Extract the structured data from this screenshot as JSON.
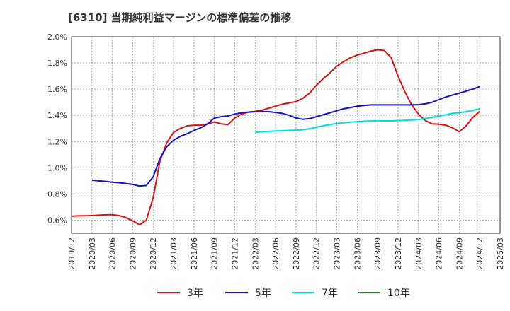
{
  "chart_data": {
    "type": "line",
    "title": "[6310]  当期純利益マージンの標準偏差の推移",
    "xlabel": "",
    "ylabel": "",
    "ylim": [
      0.5,
      2.0
    ],
    "yticks": [
      0.6,
      0.8,
      1.0,
      1.2,
      1.4,
      1.6,
      1.8,
      2.0
    ],
    "ytick_labels": [
      "0.6%",
      "0.8%",
      "1.0%",
      "1.2%",
      "1.4%",
      "1.6%",
      "1.8%",
      "2.0%"
    ],
    "xticks": [
      "2019/12",
      "2020/03",
      "2020/06",
      "2020/09",
      "2020/12",
      "2021/03",
      "2021/06",
      "2021/09",
      "2021/12",
      "2022/03",
      "2022/06",
      "2022/09",
      "2022/12",
      "2023/03",
      "2023/06",
      "2023/09",
      "2023/12",
      "2024/03",
      "2024/06",
      "2024/09",
      "2024/12",
      "2025/03"
    ],
    "grid": true,
    "legend_position": "bottom",
    "series": [
      {
        "name": "3年",
        "color": "#dd1111",
        "x": [
          "2019/12",
          "2020/01",
          "2020/02",
          "2020/03",
          "2020/04",
          "2020/05",
          "2020/06",
          "2020/07",
          "2020/08",
          "2020/09",
          "2020/10",
          "2020/11",
          "2020/12",
          "2021/01",
          "2021/02",
          "2021/03",
          "2021/04",
          "2021/05",
          "2021/06",
          "2021/07",
          "2021/08",
          "2021/09",
          "2021/10",
          "2021/11",
          "2021/12",
          "2022/01",
          "2022/02",
          "2022/03",
          "2022/04",
          "2022/05",
          "2022/06",
          "2022/07",
          "2022/08",
          "2022/09",
          "2022/10",
          "2022/11",
          "2022/12",
          "2023/01",
          "2023/02",
          "2023/03",
          "2023/04",
          "2023/05",
          "2023/06",
          "2023/07",
          "2023/08",
          "2023/09",
          "2023/10",
          "2023/11",
          "2023/12",
          "2024/01",
          "2024/02",
          "2024/03",
          "2024/04",
          "2024/05",
          "2024/06",
          "2024/07",
          "2024/08",
          "2024/09",
          "2024/10",
          "2024/11",
          "2024/12"
        ],
        "values": [
          0.63,
          0.633,
          0.634,
          0.635,
          0.638,
          0.641,
          0.642,
          0.635,
          0.62,
          0.595,
          0.565,
          0.6,
          0.77,
          1.05,
          1.19,
          1.27,
          1.3,
          1.32,
          1.325,
          1.325,
          1.335,
          1.35,
          1.335,
          1.33,
          1.38,
          1.41,
          1.425,
          1.43,
          1.44,
          1.455,
          1.47,
          1.485,
          1.495,
          1.505,
          1.53,
          1.57,
          1.63,
          1.68,
          1.725,
          1.775,
          1.81,
          1.84,
          1.86,
          1.875,
          1.89,
          1.9,
          1.895,
          1.84,
          1.7,
          1.58,
          1.48,
          1.41,
          1.36,
          1.335,
          1.333,
          1.325,
          1.305,
          1.275,
          1.32,
          1.385,
          1.43
        ]
      },
      {
        "name": "5年",
        "color": "#1111cc",
        "x": [
          "2020/03",
          "2020/04",
          "2020/05",
          "2020/06",
          "2020/07",
          "2020/08",
          "2020/09",
          "2020/10",
          "2020/11",
          "2020/12",
          "2021/01",
          "2021/02",
          "2021/03",
          "2021/04",
          "2021/05",
          "2021/06",
          "2021/07",
          "2021/08",
          "2021/09",
          "2021/10",
          "2021/11",
          "2021/12",
          "2022/01",
          "2022/02",
          "2022/03",
          "2022/04",
          "2022/05",
          "2022/06",
          "2022/07",
          "2022/08",
          "2022/09",
          "2022/10",
          "2022/11",
          "2022/12",
          "2023/01",
          "2023/02",
          "2023/03",
          "2023/04",
          "2023/05",
          "2023/06",
          "2023/07",
          "2023/08",
          "2023/09",
          "2023/10",
          "2023/11",
          "2023/12",
          "2024/01",
          "2024/02",
          "2024/03",
          "2024/04",
          "2024/05",
          "2024/06",
          "2024/07",
          "2024/08",
          "2024/09",
          "2024/10",
          "2024/11",
          "2024/12"
        ],
        "values": [
          0.905,
          0.9,
          0.896,
          0.89,
          0.886,
          0.88,
          0.873,
          0.86,
          0.865,
          0.93,
          1.07,
          1.16,
          1.21,
          1.24,
          1.26,
          1.285,
          1.305,
          1.335,
          1.38,
          1.39,
          1.395,
          1.41,
          1.42,
          1.425,
          1.428,
          1.43,
          1.428,
          1.422,
          1.415,
          1.4,
          1.38,
          1.37,
          1.375,
          1.39,
          1.405,
          1.42,
          1.435,
          1.45,
          1.46,
          1.47,
          1.475,
          1.48,
          1.48,
          1.48,
          1.48,
          1.48,
          1.48,
          1.48,
          1.482,
          1.488,
          1.5,
          1.52,
          1.54,
          1.555,
          1.57,
          1.585,
          1.6,
          1.62
        ]
      },
      {
        "name": "7年",
        "color": "#00dddd",
        "x": [
          "2022/03",
          "2022/04",
          "2022/05",
          "2022/06",
          "2022/07",
          "2022/08",
          "2022/09",
          "2022/10",
          "2022/11",
          "2022/12",
          "2023/01",
          "2023/02",
          "2023/03",
          "2023/04",
          "2023/05",
          "2023/06",
          "2023/07",
          "2023/08",
          "2023/09",
          "2023/10",
          "2023/11",
          "2023/12",
          "2024/01",
          "2024/02",
          "2024/03",
          "2024/04",
          "2024/05",
          "2024/06",
          "2024/07",
          "2024/08",
          "2024/09",
          "2024/10",
          "2024/11",
          "2024/12"
        ],
        "values": [
          1.27,
          1.275,
          1.278,
          1.28,
          1.283,
          1.285,
          1.287,
          1.29,
          1.298,
          1.31,
          1.32,
          1.33,
          1.338,
          1.343,
          1.348,
          1.352,
          1.355,
          1.357,
          1.358,
          1.358,
          1.358,
          1.36,
          1.362,
          1.365,
          1.368,
          1.375,
          1.385,
          1.395,
          1.405,
          1.415,
          1.42,
          1.428,
          1.438,
          1.45
        ]
      },
      {
        "name": "10年",
        "color": "#228822",
        "x": [],
        "values": []
      }
    ]
  }
}
